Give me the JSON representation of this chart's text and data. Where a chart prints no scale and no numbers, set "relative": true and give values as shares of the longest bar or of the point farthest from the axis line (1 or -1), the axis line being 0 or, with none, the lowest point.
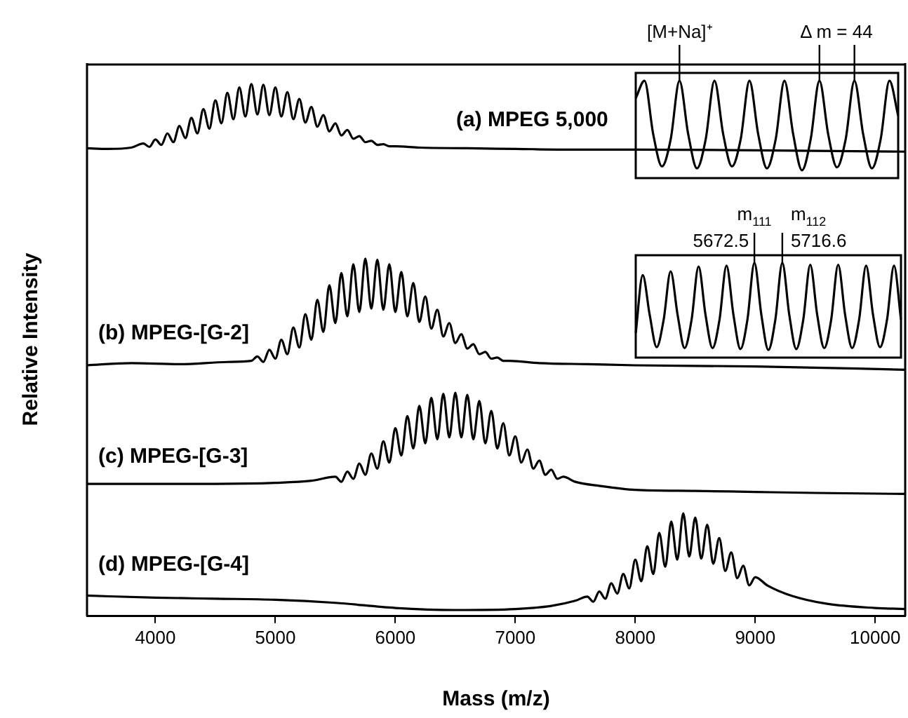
{
  "chart_data": [
    {
      "type": "line",
      "relative": true,
      "xlim": [
        3430,
        10250
      ],
      "tick_labels": false,
      "ylabel": "Relative Intensity",
      "series": [
        {
          "name": "(a) MPEG 5,000",
          "color": "#000000",
          "x": [
            3430,
            3600,
            3800,
            3900,
            3950,
            4000,
            4050,
            4100,
            4150,
            4200,
            4250,
            4300,
            4350,
            4400,
            4450,
            4500,
            4550,
            4600,
            4650,
            4700,
            4750,
            4800,
            4850,
            4900,
            4950,
            5000,
            5050,
            5100,
            5150,
            5200,
            5250,
            5300,
            5350,
            5400,
            5450,
            5500,
            5550,
            5600,
            5650,
            5700,
            5750,
            5800,
            5850,
            5900,
            5950,
            6000,
            6200,
            6600,
            7000,
            7500,
            8000,
            9000,
            10250
          ],
          "values": [
            0.05,
            0.04,
            0.06,
            0.12,
            0.07,
            0.18,
            0.1,
            0.27,
            0.14,
            0.38,
            0.2,
            0.5,
            0.27,
            0.63,
            0.34,
            0.76,
            0.42,
            0.87,
            0.48,
            0.95,
            0.52,
            1,
            0.55,
            0.99,
            0.54,
            0.95,
            0.52,
            0.88,
            0.48,
            0.78,
            0.43,
            0.66,
            0.37,
            0.54,
            0.3,
            0.42,
            0.24,
            0.32,
            0.19,
            0.23,
            0.14,
            0.16,
            0.1,
            0.11,
            0.08,
            0.08,
            0.06,
            0.05,
            0.04,
            0.03,
            0.03,
            0.02,
            0
          ]
        }
      ]
    },
    {
      "type": "line",
      "relative": true,
      "xlim": [
        3430,
        10250
      ],
      "tick_labels": false,
      "series": [
        {
          "name": "(b) MPEG-[G-2]",
          "color": "#000000",
          "x": [
            3430,
            3800,
            4200,
            4600,
            4800,
            4850,
            4900,
            4950,
            5000,
            5050,
            5100,
            5150,
            5200,
            5250,
            5300,
            5350,
            5400,
            5450,
            5500,
            5550,
            5600,
            5650,
            5700,
            5750,
            5800,
            5850,
            5900,
            5950,
            6000,
            6050,
            6100,
            6150,
            6200,
            6250,
            6300,
            6350,
            6400,
            6450,
            6500,
            6550,
            6600,
            6650,
            6700,
            6750,
            6800,
            6850,
            6900,
            6950,
            7200,
            7600,
            8000,
            9000,
            10250
          ],
          "values": [
            0.04,
            0.06,
            0.05,
            0.07,
            0.08,
            0.12,
            0.07,
            0.18,
            0.1,
            0.27,
            0.14,
            0.38,
            0.2,
            0.5,
            0.27,
            0.63,
            0.34,
            0.76,
            0.42,
            0.87,
            0.48,
            0.95,
            0.52,
            1,
            0.55,
            0.99,
            0.54,
            0.95,
            0.52,
            0.88,
            0.48,
            0.78,
            0.43,
            0.66,
            0.37,
            0.54,
            0.3,
            0.42,
            0.24,
            0.32,
            0.19,
            0.23,
            0.14,
            0.16,
            0.1,
            0.11,
            0.08,
            0.08,
            0.06,
            0.05,
            0.04,
            0.03,
            0
          ]
        }
      ]
    },
    {
      "type": "line",
      "relative": true,
      "xlim": [
        3430,
        10250
      ],
      "tick_labels": false,
      "series": [
        {
          "name": "(c) MPEG-[G-3]",
          "color": "#000000",
          "x": [
            3430,
            4000,
            4500,
            5000,
            5300,
            5500,
            5550,
            5600,
            5650,
            5700,
            5750,
            5800,
            5850,
            5900,
            5950,
            6000,
            6050,
            6100,
            6150,
            6200,
            6250,
            6300,
            6350,
            6400,
            6450,
            6500,
            6550,
            6600,
            6650,
            6700,
            6750,
            6800,
            6850,
            6900,
            6950,
            7000,
            7050,
            7100,
            7150,
            7200,
            7250,
            7300,
            7350,
            7400,
            7500,
            7700,
            8000,
            8500,
            9000,
            9500,
            10250
          ],
          "values": [
            0.1,
            0.1,
            0.1,
            0.11,
            0.13,
            0.17,
            0.12,
            0.22,
            0.15,
            0.3,
            0.19,
            0.4,
            0.25,
            0.52,
            0.31,
            0.65,
            0.38,
            0.77,
            0.45,
            0.87,
            0.5,
            0.95,
            0.54,
            0.99,
            0.56,
            1,
            0.56,
            0.98,
            0.54,
            0.92,
            0.5,
            0.82,
            0.45,
            0.7,
            0.38,
            0.57,
            0.31,
            0.44,
            0.25,
            0.33,
            0.19,
            0.24,
            0.15,
            0.17,
            0.12,
            0.08,
            0.04,
            0.03,
            0.02,
            0.01,
            0
          ]
        }
      ]
    },
    {
      "type": "line",
      "relative": true,
      "xlim": [
        3430,
        10250
      ],
      "xticks": [
        4000,
        5000,
        6000,
        7000,
        8000,
        9000,
        10000
      ],
      "tick_labels": "x",
      "xlabel": "Mass (m/z)",
      "series": [
        {
          "name": "(d) MPEG-[G-4]",
          "color": "#000000",
          "x": [
            3430,
            4000,
            4500,
            5000,
            5500,
            6000,
            6500,
            7000,
            7300,
            7500,
            7600,
            7650,
            7700,
            7750,
            7800,
            7850,
            7900,
            7950,
            8000,
            8050,
            8100,
            8150,
            8200,
            8250,
            8300,
            8350,
            8400,
            8450,
            8500,
            8550,
            8600,
            8650,
            8700,
            8750,
            8800,
            8850,
            8900,
            8950,
            9000,
            9100,
            9300,
            9600,
            10000,
            10250
          ],
          "values": [
            0.2,
            0.18,
            0.17,
            0.16,
            0.13,
            0.08,
            0.06,
            0.07,
            0.1,
            0.15,
            0.19,
            0.14,
            0.24,
            0.17,
            0.32,
            0.22,
            0.41,
            0.27,
            0.55,
            0.34,
            0.68,
            0.41,
            0.81,
            0.48,
            0.92,
            0.55,
            1,
            0.58,
            0.96,
            0.56,
            0.89,
            0.51,
            0.76,
            0.44,
            0.62,
            0.37,
            0.49,
            0.3,
            0.38,
            0.3,
            0.2,
            0.12,
            0.08,
            0.07
          ]
        }
      ]
    },
    {
      "type": "line",
      "relative": true,
      "tick_labels": false,
      "annotations": [
        "[M+Na]⁺",
        "Δ m = 44"
      ],
      "categories": [
        null,
        null,
        null,
        null,
        null,
        null,
        null,
        null,
        null,
        null,
        null,
        null,
        null,
        null,
        null,
        null,
        null,
        null,
        null,
        null,
        null,
        null,
        null,
        null,
        null,
        null,
        null,
        null,
        null,
        null,
        null
      ],
      "series": [
        {
          "color": "#000000",
          "values": [
            0.82,
            1,
            0.45,
            0.12,
            0.4,
            1,
            0.45,
            0.1,
            0.4,
            1,
            0.45,
            0.12,
            0.4,
            1,
            0.45,
            0.1,
            0.4,
            1,
            0.45,
            0.08,
            0.4,
            1,
            0.45,
            0.11,
            0.4,
            1,
            0.45,
            0.1,
            0.4,
            1,
            0.64
          ]
        }
      ]
    },
    {
      "type": "line",
      "relative": true,
      "tick_labels": false,
      "annotations": [
        "m$_{111}$",
        "5672.5",
        "m$_{112}$",
        "5716.6"
      ],
      "categories": [
        null,
        null,
        null,
        null,
        null,
        null,
        null,
        null,
        null,
        null,
        null,
        null,
        null,
        null,
        null,
        null,
        null,
        null,
        null,
        null,
        null,
        null,
        null,
        null,
        null,
        null,
        null,
        null,
        null,
        null,
        null,
        null,
        null,
        null,
        null,
        null,
        null,
        null,
        null
      ],
      "series": [
        {
          "color": "#000000",
          "values": [
            0.26,
            0.87,
            0.45,
            0.11,
            0.4,
            0.91,
            0.45,
            0.1,
            0.4,
            0.96,
            0.45,
            0.1,
            0.4,
            0.97,
            0.45,
            0.09,
            0.4,
            1,
            0.45,
            0.08,
            0.4,
            1,
            0.45,
            0.09,
            0.4,
            0.98,
            0.45,
            0.1,
            0.4,
            0.98,
            0.45,
            0.1,
            0.4,
            0.97,
            0.45,
            0.11,
            0.4,
            0.97,
            0.4
          ]
        }
      ]
    }
  ]
}
